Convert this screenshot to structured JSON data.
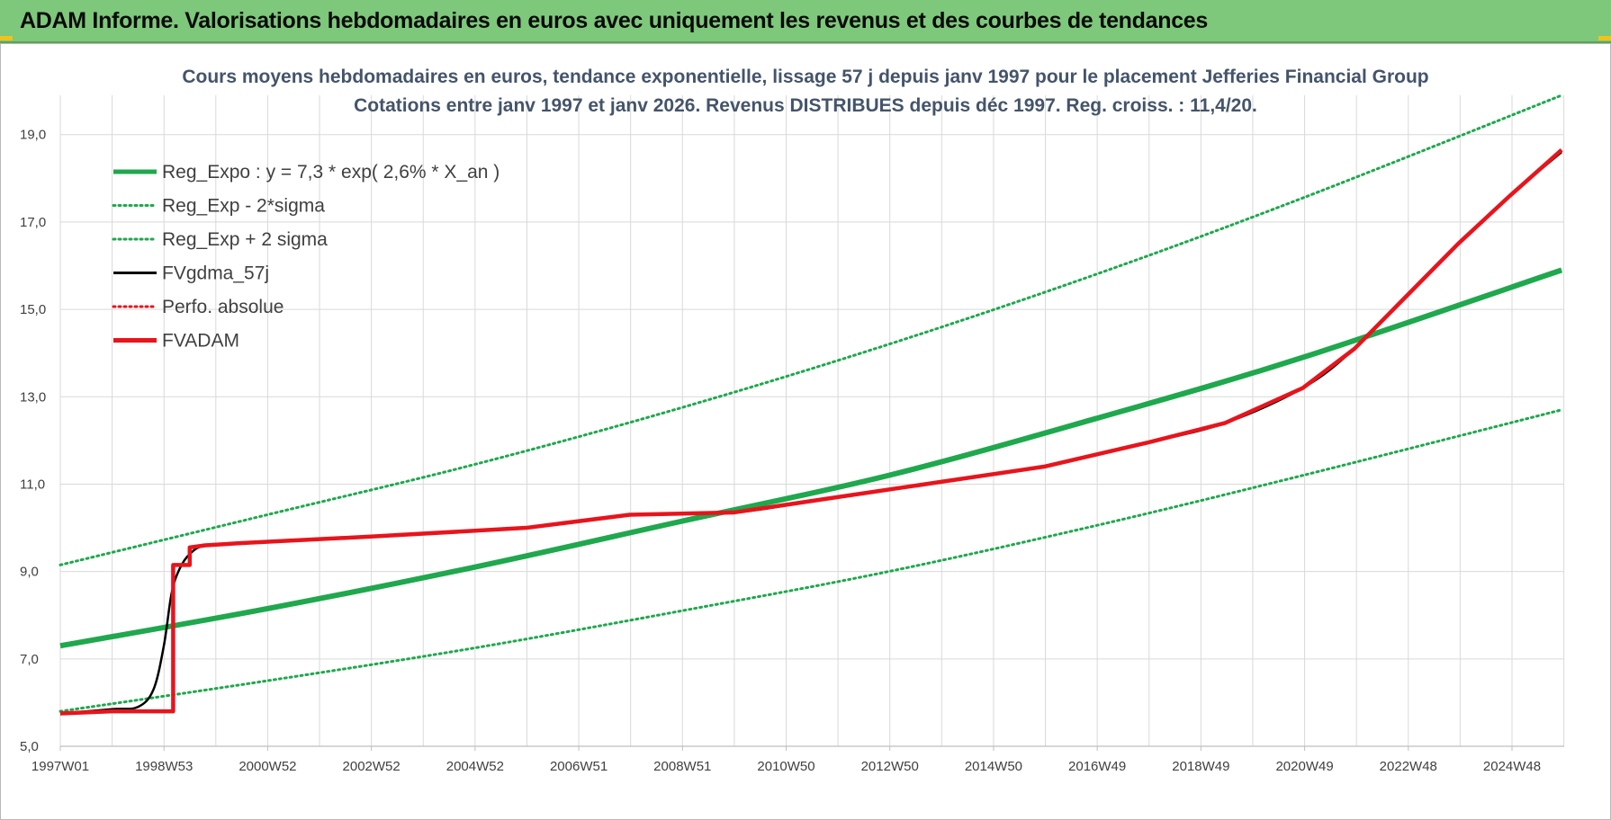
{
  "header": {
    "title": "ADAM Informe. Valorisations hebdomadaires en euros avec uniquement les revenus et des courbes de tendances"
  },
  "colors": {
    "header_bg": "#7dc87a",
    "green": "#1fa84d",
    "red": "#e8141c",
    "black": "#000000",
    "grid": "#d9d9d9",
    "title": "#44546a"
  },
  "chart_data": {
    "type": "line",
    "title_lines": [
      "Cours moyens hebdomadaires en euros, tendance exponentielle, lissage 57 j depuis janv 1997  pour le placement Jefferies Financial Group",
      "Cotations entre janv 1997 et janv 2026. Revenus DISTRIBUES depuis déc 1997.  Reg. croiss. : 11,4/20."
    ],
    "x_ticks": [
      "1997W01",
      "1998W53",
      "2000W52",
      "2002W52",
      "2004W52",
      "2006W51",
      "2008W51",
      "2010W50",
      "2012W50",
      "2014W50",
      "2016W49",
      "2018W49",
      "2020W49",
      "2022W48",
      "2024W48"
    ],
    "y_ticks": [
      "5,0",
      "7,0",
      "9,0",
      "11,0",
      "13,0",
      "15,0",
      "17,0",
      "19,0"
    ],
    "ylim": [
      5,
      19.9
    ],
    "xlim": [
      1997.0,
      2026.05
    ],
    "grid": true,
    "legend_position": "top-left",
    "legend": [
      {
        "label": "Reg_Expo : y = 7,3 * exp( 2,6% *  X_an )",
        "color": "#1fa84d",
        "style": "solid-thick"
      },
      {
        "label": "Reg_Exp - 2*sigma",
        "color": "#1fa84d",
        "style": "dotted"
      },
      {
        "label": "Reg_Exp + 2 sigma",
        "color": "#1fa84d",
        "style": "dotted"
      },
      {
        "label": "FVgdma_57j",
        "color": "#000000",
        "style": "solid"
      },
      {
        "label": "Perfo. absolue",
        "color": "#e8141c",
        "style": "dotted"
      },
      {
        "label": "FVADAM",
        "color": "#e8141c",
        "style": "solid-thick"
      }
    ],
    "series": [
      {
        "name": "Reg_Expo : y = 7,3 * exp( 2,6% *  X_an )",
        "x": [
          1997.0,
          2001.0,
          2005.0,
          2009.0,
          2013.0,
          2017.0,
          2021.0,
          2026.0
        ],
        "y": [
          7.3,
          8.15,
          9.1,
          10.15,
          11.2,
          12.5,
          13.9,
          15.9
        ]
      },
      {
        "name": "Reg_Exp - 2*sigma",
        "x": [
          1997.0,
          2001.0,
          2005.0,
          2009.0,
          2013.0,
          2017.0,
          2021.0,
          2026.0
        ],
        "y": [
          5.8,
          6.5,
          7.25,
          8.1,
          9.0,
          10.05,
          11.2,
          12.7
        ]
      },
      {
        "name": "Reg_Exp + 2 sigma",
        "x": [
          1997.0,
          2001.0,
          2005.0,
          2009.0,
          2013.0,
          2017.0,
          2021.0,
          2026.0
        ],
        "y": [
          9.15,
          10.3,
          11.45,
          12.75,
          14.2,
          15.8,
          17.55,
          19.9
        ]
      },
      {
        "name": "FVgdma_57j",
        "x": [
          1997.0,
          1998.0,
          1998.5,
          1998.8,
          1999.0,
          1999.15,
          1999.3,
          1999.5,
          1999.8,
          2000.5,
          2003.0,
          2006.0,
          2008.0,
          2010.0,
          2012.0,
          2014.0,
          2016.0,
          2018.0,
          2019.5,
          2021.0,
          2022.0,
          2023.0,
          2024.0,
          2025.0,
          2026.0
        ],
        "y": [
          5.75,
          5.85,
          5.9,
          6.3,
          7.3,
          8.5,
          9.05,
          9.4,
          9.6,
          9.65,
          9.8,
          10.0,
          10.3,
          10.35,
          10.7,
          11.05,
          11.4,
          11.95,
          12.4,
          13.2,
          14.1,
          15.3,
          16.5,
          17.6,
          18.6
        ]
      },
      {
        "name": "FVADAM",
        "x": [
          1997.0,
          1998.0,
          1998.5,
          1999.18,
          1999.18,
          1999.5,
          1999.5,
          1999.8,
          2000.5,
          2003.0,
          2006.0,
          2008.0,
          2010.0,
          2012.0,
          2014.0,
          2016.0,
          2018.0,
          2019.5,
          2021.0,
          2022.0,
          2023.0,
          2024.0,
          2025.0,
          2026.0
        ],
        "y": [
          5.75,
          5.8,
          5.8,
          5.8,
          9.15,
          9.15,
          9.55,
          9.6,
          9.65,
          9.8,
          10.0,
          10.3,
          10.35,
          10.7,
          11.05,
          11.4,
          11.95,
          12.4,
          13.2,
          14.1,
          15.3,
          16.5,
          17.6,
          18.65
        ]
      }
    ]
  }
}
